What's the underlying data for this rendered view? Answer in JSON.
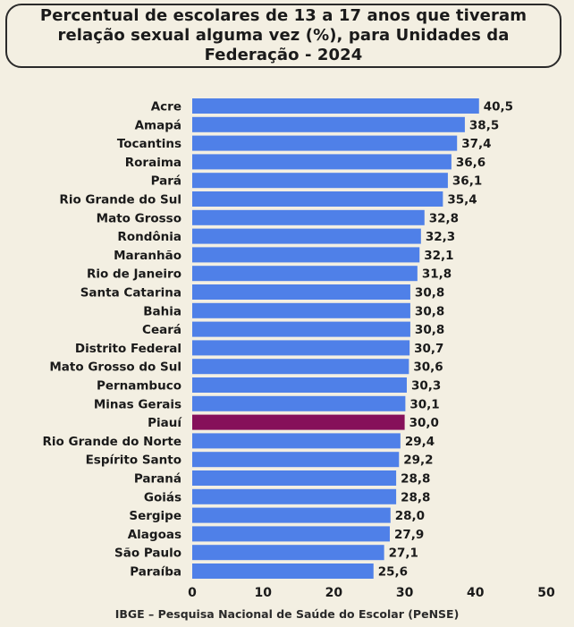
{
  "colors": {
    "background": "#f3efe2",
    "bar": "#4f80e8",
    "highlight": "#86105a"
  },
  "chart_data": {
    "type": "bar",
    "orientation": "horizontal",
    "title": "Percentual de escolares de 13 a 17 anos que tiveram\nrelação sexual alguma vez (%), para Unidades da\nFederação - 2024",
    "source": "IBGE – Pesquisa Nacional de Saúde do Escolar (PeNSE)",
    "categories": [
      "Acre",
      "Amapá",
      "Tocantins",
      "Roraima",
      "Pará",
      "Rio Grande do Sul",
      "Mato Grosso",
      "Rondônia",
      "Maranhão",
      "Rio de Janeiro",
      "Santa Catarina",
      "Bahia",
      "Ceará",
      "Distrito Federal",
      "Mato Grosso do Sul",
      "Pernambuco",
      "Minas Gerais",
      "Piauí",
      "Rio Grande do Norte",
      "Espírito Santo",
      "Paraná",
      "Goiás",
      "Sergipe",
      "Alagoas",
      "São Paulo",
      "Paraíba"
    ],
    "values": [
      40.5,
      38.5,
      37.4,
      36.6,
      36.1,
      35.4,
      32.8,
      32.3,
      32.1,
      31.8,
      30.8,
      30.8,
      30.8,
      30.7,
      30.6,
      30.3,
      30.1,
      30.0,
      29.4,
      29.2,
      28.8,
      28.8,
      28.0,
      27.9,
      27.1,
      25.6
    ],
    "value_labels": [
      "40,5",
      "38,5",
      "37,4",
      "36,6",
      "36,1",
      "35,4",
      "32,8",
      "32,3",
      "32,1",
      "31,8",
      "30,8",
      "30,8",
      "30,8",
      "30,7",
      "30,6",
      "30,3",
      "30,1",
      "30,0",
      "29,4",
      "29,2",
      "28,8",
      "28,8",
      "28,0",
      "27,9",
      "27,1",
      "25,6"
    ],
    "highlight_category": "Piauí",
    "xlim": [
      0,
      50
    ],
    "xticks": [
      0,
      10,
      20,
      30,
      40,
      50
    ],
    "grid": false,
    "legend": "none"
  }
}
